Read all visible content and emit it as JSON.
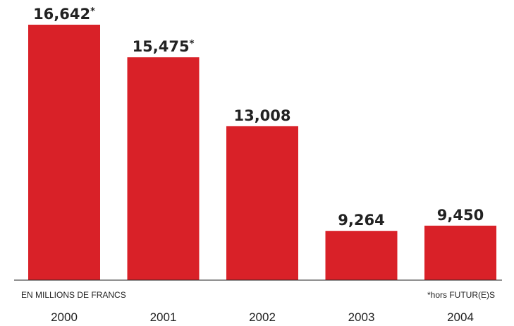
{
  "chart_data": {
    "type": "bar",
    "categories": [
      "2000",
      "2001",
      "2002",
      "2003",
      "2004"
    ],
    "values": [
      16642,
      15475,
      13008,
      9264,
      9450
    ],
    "data_labels": [
      "16,642",
      "15,475",
      "13,008",
      "9,264",
      "9,450"
    ],
    "label_markers": [
      "*",
      "*",
      "",
      "",
      ""
    ],
    "title": "",
    "xlabel": "",
    "ylabel": "",
    "unit_note": "EN MILLIONS DE FRANCS",
    "footnote": "*hors FUTUR(E)S",
    "y_baseline": 7500,
    "ylim": [
      7500,
      16900
    ],
    "grid": false,
    "legend": "none",
    "bar_color": "#d92128",
    "text_color": "#222222"
  }
}
